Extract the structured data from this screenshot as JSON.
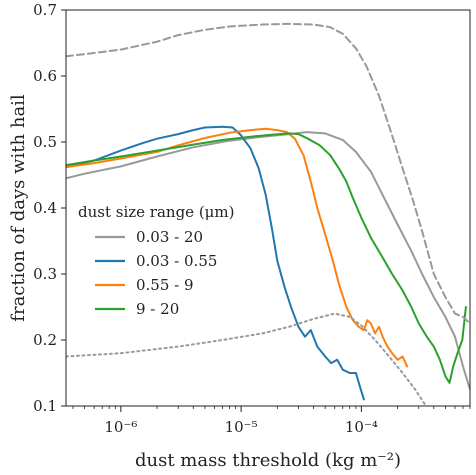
{
  "chart_data": {
    "type": "line",
    "xlabel": "dust mass threshold (kg m⁻²)",
    "ylabel": "fraction of days with hail",
    "x_scale": "log",
    "xlim": [
      3.5e-07,
      0.0008
    ],
    "ylim": [
      0.1,
      0.7
    ],
    "y_ticks": [
      "0.1",
      "0.2",
      "0.3",
      "0.4",
      "0.5",
      "0.6",
      "0.7"
    ],
    "x_ticks": [
      {
        "value": 1e-06,
        "label": "10⁻⁶"
      },
      {
        "value": 1e-05,
        "label": "10⁻⁵"
      },
      {
        "value": 0.0001,
        "label": "10⁻⁴"
      }
    ],
    "legend": {
      "title": "dust size range (μm)",
      "placement": "center-left",
      "entries": [
        {
          "label": "0.03 - 20",
          "color": "#999999"
        },
        {
          "label": "0.03 - 0.55",
          "color": "#1f77b4"
        },
        {
          "label": "0.55 - 9",
          "color": "#ff7f0e"
        },
        {
          "label": "9 - 20",
          "color": "#2ca02c"
        }
      ]
    },
    "series": [
      {
        "name": "0.03 - 20",
        "color": "#999999",
        "style": "solid",
        "points": [
          [
            3.5e-07,
            0.445
          ],
          [
            5e-07,
            0.452
          ],
          [
            1e-06,
            0.463
          ],
          [
            2e-06,
            0.478
          ],
          [
            4e-06,
            0.492
          ],
          [
            8e-06,
            0.502
          ],
          [
            1.5e-05,
            0.508
          ],
          [
            2.5e-05,
            0.512
          ],
          [
            3.5e-05,
            0.515
          ],
          [
            5e-05,
            0.513
          ],
          [
            7e-05,
            0.503
          ],
          [
            9e-05,
            0.485
          ],
          [
            0.00012,
            0.455
          ],
          [
            0.00016,
            0.41
          ],
          [
            0.0002,
            0.375
          ],
          [
            0.00026,
            0.335
          ],
          [
            0.00032,
            0.3
          ],
          [
            0.0004,
            0.265
          ],
          [
            0.0005,
            0.235
          ],
          [
            0.0006,
            0.205
          ],
          [
            0.0007,
            0.16
          ],
          [
            0.0008,
            0.125
          ]
        ]
      },
      {
        "name": "0.03 - 0.55",
        "color": "#1f77b4",
        "style": "solid",
        "points": [
          [
            3.5e-07,
            0.462
          ],
          [
            6e-07,
            0.472
          ],
          [
            1e-06,
            0.487
          ],
          [
            1.5e-06,
            0.498
          ],
          [
            2e-06,
            0.505
          ],
          [
            3e-06,
            0.512
          ],
          [
            4e-06,
            0.518
          ],
          [
            5e-06,
            0.522
          ],
          [
            7e-06,
            0.523
          ],
          [
            8.5e-06,
            0.522
          ],
          [
            1e-05,
            0.51
          ],
          [
            1.2e-05,
            0.49
          ],
          [
            1.4e-05,
            0.46
          ],
          [
            1.6e-05,
            0.42
          ],
          [
            1.8e-05,
            0.37
          ],
          [
            2e-05,
            0.32
          ],
          [
            2.3e-05,
            0.28
          ],
          [
            2.6e-05,
            0.25
          ],
          [
            3e-05,
            0.22
          ],
          [
            3.4e-05,
            0.205
          ],
          [
            3.8e-05,
            0.215
          ],
          [
            4.3e-05,
            0.19
          ],
          [
            5e-05,
            0.175
          ],
          [
            5.6e-05,
            0.165
          ],
          [
            6.3e-05,
            0.17
          ],
          [
            7e-05,
            0.155
          ],
          [
            8e-05,
            0.15
          ],
          [
            9e-05,
            0.15
          ],
          [
            9.7e-05,
            0.13
          ],
          [
            0.000105,
            0.11
          ]
        ]
      },
      {
        "name": "0.55 - 9",
        "color": "#ff7f0e",
        "style": "solid",
        "points": [
          [
            3.5e-07,
            0.462
          ],
          [
            6e-07,
            0.468
          ],
          [
            1e-06,
            0.475
          ],
          [
            2e-06,
            0.485
          ],
          [
            3e-06,
            0.495
          ],
          [
            5e-06,
            0.506
          ],
          [
            8e-06,
            0.514
          ],
          [
            1.2e-05,
            0.518
          ],
          [
            1.6e-05,
            0.52
          ],
          [
            2e-05,
            0.518
          ],
          [
            2.4e-05,
            0.515
          ],
          [
            2.8e-05,
            0.505
          ],
          [
            3.3e-05,
            0.48
          ],
          [
            3.8e-05,
            0.44
          ],
          [
            4.3e-05,
            0.4
          ],
          [
            5e-05,
            0.36
          ],
          [
            5.8e-05,
            0.32
          ],
          [
            6.5e-05,
            0.285
          ],
          [
            7.5e-05,
            0.25
          ],
          [
            8.5e-05,
            0.23
          ],
          [
            9.5e-05,
            0.22
          ],
          [
            0.000105,
            0.215
          ],
          [
            0.000112,
            0.23
          ],
          [
            0.00012,
            0.225
          ],
          [
            0.00013,
            0.21
          ],
          [
            0.00014,
            0.22
          ],
          [
            0.00015,
            0.205
          ],
          [
            0.000165,
            0.19
          ],
          [
            0.00018,
            0.18
          ],
          [
            0.0002,
            0.17
          ],
          [
            0.00022,
            0.175
          ],
          [
            0.00024,
            0.16
          ]
        ]
      },
      {
        "name": "9 - 20",
        "color": "#2ca02c",
        "style": "solid",
        "points": [
          [
            3.5e-07,
            0.465
          ],
          [
            6e-07,
            0.472
          ],
          [
            1e-06,
            0.478
          ],
          [
            2e-06,
            0.487
          ],
          [
            4e-06,
            0.496
          ],
          [
            7e-06,
            0.503
          ],
          [
            1.2e-05,
            0.508
          ],
          [
            1.8e-05,
            0.511
          ],
          [
            2.5e-05,
            0.513
          ],
          [
            3e-05,
            0.512
          ],
          [
            3.6e-05,
            0.505
          ],
          [
            4.5e-05,
            0.495
          ],
          [
            5.5e-05,
            0.48
          ],
          [
            6.5e-05,
            0.46
          ],
          [
            7.5e-05,
            0.44
          ],
          [
            8.5e-05,
            0.415
          ],
          [
            0.0001,
            0.385
          ],
          [
            0.00012,
            0.355
          ],
          [
            0.00015,
            0.325
          ],
          [
            0.00018,
            0.3
          ],
          [
            0.00022,
            0.275
          ],
          [
            0.00026,
            0.25
          ],
          [
            0.0003,
            0.225
          ],
          [
            0.00035,
            0.205
          ],
          [
            0.0004,
            0.19
          ],
          [
            0.00045,
            0.17
          ],
          [
            0.0005,
            0.145
          ],
          [
            0.00054,
            0.135
          ],
          [
            0.00058,
            0.16
          ],
          [
            0.00063,
            0.18
          ],
          [
            0.00069,
            0.2
          ],
          [
            0.00074,
            0.25
          ]
        ]
      },
      {
        "name": "",
        "color": "#999999",
        "style": "dashed",
        "points": [
          [
            3.5e-07,
            0.63
          ],
          [
            5e-07,
            0.633
          ],
          [
            1e-06,
            0.64
          ],
          [
            2e-06,
            0.652
          ],
          [
            3e-06,
            0.662
          ],
          [
            5e-06,
            0.67
          ],
          [
            8e-06,
            0.675
          ],
          [
            1.5e-05,
            0.678
          ],
          [
            2.5e-05,
            0.679
          ],
          [
            4e-05,
            0.678
          ],
          [
            5.5e-05,
            0.674
          ],
          [
            7e-05,
            0.664
          ],
          [
            9e-05,
            0.642
          ],
          [
            0.00011,
            0.615
          ],
          [
            0.00014,
            0.57
          ],
          [
            0.00018,
            0.51
          ],
          [
            0.00022,
            0.46
          ],
          [
            0.00027,
            0.41
          ],
          [
            0.00032,
            0.365
          ],
          [
            0.0004,
            0.3
          ],
          [
            0.0005,
            0.265
          ],
          [
            0.0006,
            0.24
          ],
          [
            0.0007,
            0.235
          ],
          [
            0.0008,
            0.225
          ]
        ]
      },
      {
        "name": "",
        "color": "#999999",
        "style": "dotted",
        "points": [
          [
            3.5e-07,
            0.175
          ],
          [
            1e-06,
            0.18
          ],
          [
            3e-06,
            0.19
          ],
          [
            7e-06,
            0.2
          ],
          [
            1.5e-05,
            0.21
          ],
          [
            2.5e-05,
            0.22
          ],
          [
            4e-05,
            0.232
          ],
          [
            6e-05,
            0.24
          ],
          [
            8e-05,
            0.235
          ],
          [
            0.0001,
            0.222
          ],
          [
            0.00013,
            0.2
          ],
          [
            0.00017,
            0.175
          ],
          [
            0.00022,
            0.15
          ],
          [
            0.00028,
            0.125
          ],
          [
            0.00033,
            0.105
          ],
          [
            0.00035,
            0.1
          ]
        ]
      }
    ]
  }
}
